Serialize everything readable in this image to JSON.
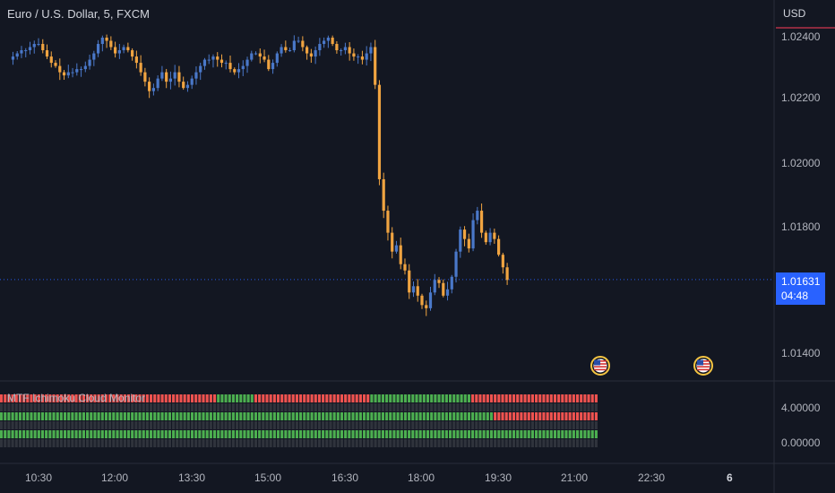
{
  "chart_title": "Euro / U.S. Dollar, 5, FXCM",
  "currency": "USD",
  "indicator_title": "MTF Ichimoku Cloud Monitor",
  "last_price": "1.01631",
  "countdown": "04:48",
  "colors": {
    "background": "#131722",
    "bull": "#4a78c9",
    "bear": "#f0a441",
    "cloud_bull": "#4caf50",
    "cloud_bear": "#f05350",
    "accent": "#2962ff"
  },
  "chart_data": [
    {
      "type": "candlestick",
      "y_ticks": [
        "1.02400",
        "1.02200",
        "1.02000",
        "1.01800",
        "1.01631",
        "1.01400"
      ],
      "ylim": [
        1.0131,
        1.0248
      ],
      "x_ticks": [
        "10:30",
        "12:00",
        "13:30",
        "15:00",
        "16:30",
        "18:00",
        "19:30",
        "21:00",
        "22:30",
        "6"
      ],
      "close": [
        1.0234,
        1.0235,
        1.0236,
        1.0236,
        1.0237,
        1.0238,
        1.0238,
        1.0236,
        1.0234,
        1.0232,
        1.0231,
        1.0229,
        1.0228,
        1.0229,
        1.0229,
        1.023,
        1.023,
        1.0231,
        1.0233,
        1.0235,
        1.0238,
        1.024,
        1.0239,
        1.0237,
        1.0235,
        1.0236,
        1.0237,
        1.0236,
        1.0234,
        1.0232,
        1.0229,
        1.0226,
        1.0223,
        1.0224,
        1.0227,
        1.0229,
        1.0226,
        1.0227,
        1.0229,
        1.0226,
        1.0224,
        1.0225,
        1.0227,
        1.0229,
        1.0231,
        1.0233,
        1.0233,
        1.0234,
        1.0233,
        1.0232,
        1.0232,
        1.023,
        1.0229,
        1.023,
        1.0231,
        1.0233,
        1.0235,
        1.0235,
        1.0234,
        1.0233,
        1.023,
        1.0232,
        1.0235,
        1.0237,
        1.0236,
        1.0236,
        1.0239,
        1.0239,
        1.0237,
        1.0235,
        1.0234,
        1.0236,
        1.0238,
        1.0239,
        1.024,
        1.0238,
        1.0236,
        1.0236,
        1.0237,
        1.0235,
        1.0234,
        1.0234,
        1.0233,
        1.0235,
        1.0237,
        1.0225,
        1.0195,
        1.0185,
        1.0178,
        1.0172,
        1.0174,
        1.0168,
        1.0166,
        1.0159,
        1.0161,
        1.0158,
        1.0155,
        1.0154,
        1.0159,
        1.0163,
        1.0162,
        1.0158,
        1.016,
        1.0164,
        1.0172,
        1.0179,
        1.0176,
        1.0173,
        1.0182,
        1.0185,
        1.0178,
        1.0175,
        1.0178,
        1.0176,
        1.0171,
        1.0167,
        1.0163
      ],
      "indicator": {
        "ylim": [
          -0.5,
          5
        ],
        "y_ticks": [
          "4.00000",
          "0.00000"
        ],
        "bars": 160,
        "rows": [
          {
            "level": 5,
            "segments": [
              {
                "state": "bear",
                "length": 58
              },
              {
                "state": "bull",
                "length": 10
              },
              {
                "state": "bear",
                "length": 31
              },
              {
                "state": "bull",
                "length": 27
              },
              {
                "state": "bear",
                "length": 34
              }
            ]
          },
          {
            "level": 4,
            "segments": [
              {
                "state": "neutral",
                "length": 160
              }
            ]
          },
          {
            "level": 3,
            "segments": [
              {
                "state": "bull",
                "length": 132
              },
              {
                "state": "bear",
                "length": 28
              }
            ]
          },
          {
            "level": 2,
            "segments": [
              {
                "state": "neutral",
                "length": 160
              }
            ]
          },
          {
            "level": 1,
            "segments": [
              {
                "state": "bull",
                "length": 160
              }
            ]
          },
          {
            "level": 0,
            "segments": [
              {
                "state": "neutral",
                "length": 160
              }
            ]
          }
        ]
      },
      "events": [
        "us-flag-icon",
        "us-flag-icon"
      ]
    }
  ]
}
